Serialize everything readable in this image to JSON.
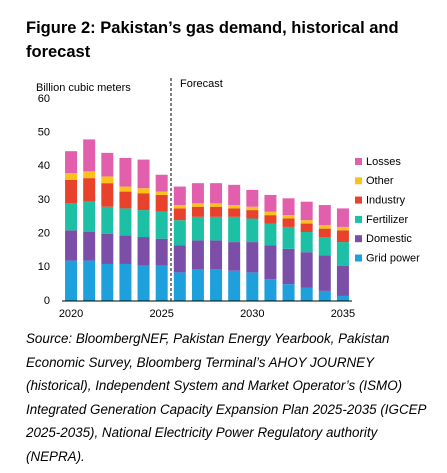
{
  "chart_data": {
    "type": "stacked_bar",
    "title": "Figure 2: Pakistan’s gas demand, historical and forecast",
    "y_label": "Billion cubic meters",
    "annotation": "Forecast",
    "source": "Source: BloombergNEF, Pakistan Energy Yearbook, Pakistan Economic Survey, Bloomberg Terminal’s AHOY JOURNEY (historical), Independent System and Market Operator’s (ISMO) Integrated Generation Capacity Expansion Plan 2025-2035 (IGCEP 2025-2035), National Electricity Power Regulatory authority (NEPRA).",
    "categories": [
      "2020",
      null,
      null,
      null,
      null,
      "2025",
      null,
      null,
      null,
      null,
      "2030",
      null,
      null,
      null,
      null,
      "2035"
    ],
    "ylim": [
      0,
      60
    ],
    "yticks": [
      0,
      10,
      20,
      30,
      40,
      50,
      60
    ],
    "legend": "right",
    "series": [
      {
        "name": "Grid power",
        "color": "#1ea0dc",
        "values": [
          12,
          12,
          11,
          11,
          10.5,
          10.5,
          8.5,
          9.5,
          9.5,
          9,
          8.5,
          6.5,
          5,
          4,
          3,
          1.5
        ]
      },
      {
        "name": "Domestic",
        "color": "#7b4fa8",
        "values": [
          9,
          8.5,
          9,
          8.5,
          8.5,
          8,
          8,
          8.5,
          8.5,
          8.5,
          9,
          10,
          10.5,
          10.5,
          10.5,
          9
        ]
      },
      {
        "name": "Fertilizer",
        "color": "#1dbfa5",
        "values": [
          8,
          9,
          8,
          8,
          8,
          8,
          7.5,
          7,
          7,
          7.5,
          7,
          6.5,
          6.5,
          6,
          5.5,
          7
        ]
      },
      {
        "name": "Industry",
        "color": "#e8412c",
        "values": [
          7,
          7,
          7,
          5,
          5,
          5,
          3.5,
          3,
          3,
          2.5,
          2.5,
          2.5,
          2.5,
          2.5,
          2.5,
          3.5
        ]
      },
      {
        "name": "Other",
        "color": "#f9c21a",
        "values": [
          2,
          2,
          2,
          1.5,
          1.5,
          1,
          1,
          1,
          1,
          1,
          1,
          1,
          1,
          1,
          1,
          1
        ]
      },
      {
        "name": "Losses",
        "color": "#e25fae",
        "values": [
          6.5,
          9.5,
          7,
          8.5,
          8.5,
          5,
          5.5,
          6,
          6,
          6,
          5,
          5,
          5,
          5.5,
          6,
          5.5
        ]
      }
    ]
  }
}
